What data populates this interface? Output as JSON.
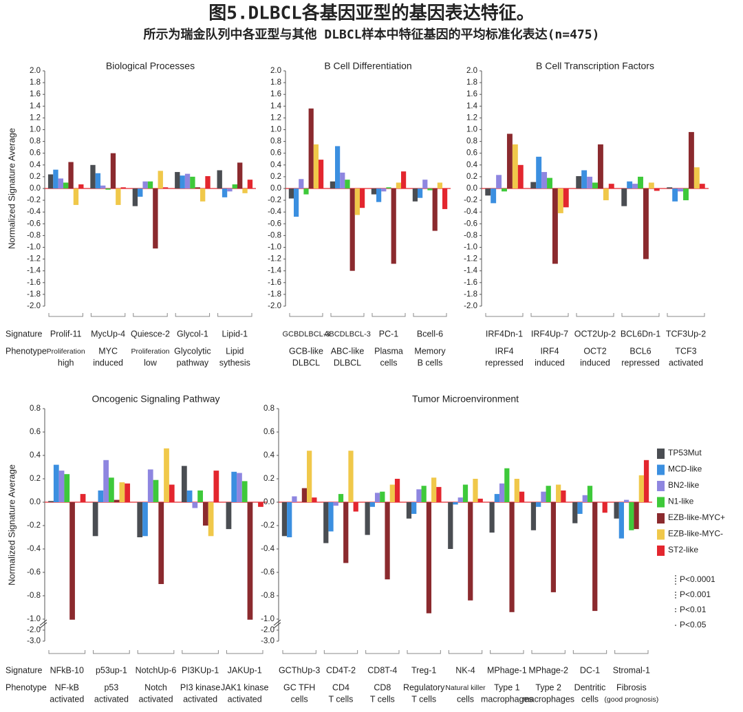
{
  "header": {
    "title": "图5.DLBCL各基因亚型的基因表达特征。",
    "subtitle": "所示为瑞金队列中各亚型与其他 DLBCL样本中特征基因的平均标准化表达(n=475)"
  },
  "row_labels": [
    "Signature",
    "Phenotype"
  ],
  "significance_legend": [
    "P<0.0001",
    "P<0.001",
    "P<0.01",
    "P<0.05"
  ],
  "chart_data": [
    {
      "type": "bar",
      "title": "Biological Processes",
      "y_label": "Normalized Signature Average",
      "categories": [
        "Prolif-11",
        "MycUp-4",
        "Quiesce-2",
        "Glycol-1",
        "Lipid-1"
      ],
      "phenotypes": [
        [
          "Proliferation",
          "high"
        ],
        [
          "MYC",
          "induced"
        ],
        [
          "Proliferation",
          "low"
        ],
        [
          "Glycolytic",
          "pathway"
        ],
        [
          "Lipid",
          "sythesis"
        ]
      ],
      "series": [
        {
          "name": "TP53Mut",
          "color": "#4a4d52",
          "values": [
            0.24,
            0.4,
            -0.3,
            0.28,
            0.31
          ]
        },
        {
          "name": "MCD-like",
          "color": "#3b8fe0",
          "values": [
            0.32,
            0.26,
            -0.14,
            0.22,
            -0.15
          ]
        },
        {
          "name": "BN2-like",
          "color": "#8e86e0",
          "values": [
            0.17,
            0.05,
            0.12,
            0.25,
            -0.05
          ]
        },
        {
          "name": "N1-like",
          "color": "#3ec93a",
          "values": [
            0.1,
            -0.02,
            0.12,
            0.2,
            0.07
          ]
        },
        {
          "name": "EZB-like-MYC+",
          "color": "#8b2a2e",
          "values": [
            0.45,
            0.6,
            -1.02,
            0.02,
            0.44
          ]
        },
        {
          "name": "EZB-like-MYC-",
          "color": "#f0c84a",
          "values": [
            -0.28,
            -0.28,
            0.3,
            -0.22,
            -0.08
          ]
        },
        {
          "name": "ST2-like",
          "color": "#e3262e",
          "values": [
            0.07,
            0.02,
            0.02,
            0.21,
            0.15
          ]
        }
      ],
      "ylim": [
        -2,
        2
      ],
      "yticks": [
        {
          "value": 2,
          "label": "2.0"
        },
        1.8,
        1.6,
        1.4,
        1.2,
        {
          "value": 1,
          "label": "1.0"
        },
        0.8,
        0.6,
        0.4,
        0.2,
        {
          "value": 0,
          "label": "0.0"
        },
        -0.2,
        -0.4,
        -0.6,
        -0.8,
        {
          "value": -1,
          "label": "-1.0"
        },
        -1.2,
        -1.4,
        -1.6,
        -1.8,
        {
          "value": -2,
          "label": "-2.0"
        }
      ]
    },
    {
      "type": "bar",
      "title": "B Cell Differentiation",
      "categories": [
        "GCBDLBCL-3",
        "ABCDLBCL-3",
        "PC-1",
        "Bcell-6"
      ],
      "phenotypes": [
        [
          "GCB-like",
          "DLBCL"
        ],
        [
          "ABC-like",
          "DLBCL"
        ],
        [
          "Plasma",
          "cells"
        ],
        [
          "Memory",
          "B cells"
        ]
      ],
      "series": [
        {
          "name": "TP53Mut",
          "color": "#4a4d52",
          "values": [
            -0.17,
            0.12,
            -0.1,
            -0.22
          ]
        },
        {
          "name": "MCD-like",
          "color": "#3b8fe0",
          "values": [
            -0.48,
            0.72,
            -0.23,
            -0.16
          ]
        },
        {
          "name": "BN2-like",
          "color": "#8e86e0",
          "values": [
            0.16,
            0.27,
            -0.05,
            0.15
          ]
        },
        {
          "name": "N1-like",
          "color": "#3ec93a",
          "values": [
            -0.1,
            0.15,
            0.02,
            -0.03
          ]
        },
        {
          "name": "EZB-like-MYC+",
          "color": "#8b2a2e",
          "values": [
            1.36,
            -1.4,
            -1.28,
            -0.72
          ]
        },
        {
          "name": "EZB-like-MYC-",
          "color": "#f0c84a",
          "values": [
            0.75,
            -0.45,
            0.1,
            0.1
          ]
        },
        {
          "name": "ST2-like",
          "color": "#e3262e",
          "values": [
            0.49,
            -0.33,
            0.29,
            -0.35
          ]
        }
      ],
      "ylim": [
        -2,
        2
      ],
      "yticks": [
        {
          "value": 2,
          "label": "2.0"
        },
        1.8,
        1.6,
        1.4,
        1.2,
        {
          "value": 1,
          "label": "1.0"
        },
        0.8,
        0.6,
        0.4,
        0.2,
        {
          "value": 0,
          "label": "0.0"
        },
        -0.2,
        -0.4,
        -0.6,
        -0.8,
        {
          "value": -1,
          "label": "-1.0"
        },
        -1.2,
        -1.4,
        -1.6,
        -1.8,
        {
          "value": -2,
          "label": "-2.0"
        }
      ]
    },
    {
      "type": "bar",
      "title": "B Cell Transcription Factors",
      "categories": [
        "IRF4Dn-1",
        "IRF4Up-7",
        "OCT2Up-2",
        "BCL6Dn-1",
        "TCF3Up-2"
      ],
      "phenotypes": [
        [
          "IRF4",
          "repressed"
        ],
        [
          "IRF4",
          "induced"
        ],
        [
          "OCT2",
          "induced"
        ],
        [
          "BCL6",
          "repressed"
        ],
        [
          "TCF3",
          "activated"
        ]
      ],
      "series": [
        {
          "name": "TP53Mut",
          "color": "#4a4d52",
          "values": [
            -0.12,
            0.11,
            0.21,
            -0.3,
            0.02
          ]
        },
        {
          "name": "MCD-like",
          "color": "#3b8fe0",
          "values": [
            -0.25,
            0.54,
            0.31,
            0.12,
            -0.22
          ]
        },
        {
          "name": "BN2-like",
          "color": "#8e86e0",
          "values": [
            0.23,
            0.28,
            0.2,
            0.08,
            -0.05
          ]
        },
        {
          "name": "N1-like",
          "color": "#3ec93a",
          "values": [
            -0.05,
            0.18,
            0.1,
            0.2,
            -0.2
          ]
        },
        {
          "name": "EZB-like-MYC+",
          "color": "#8b2a2e",
          "values": [
            0.93,
            -1.28,
            0.75,
            -1.2,
            0.96
          ]
        },
        {
          "name": "EZB-like-MYC-",
          "color": "#f0c84a",
          "values": [
            0.75,
            -0.42,
            -0.2,
            0.1,
            0.36
          ]
        },
        {
          "name": "ST2-like",
          "color": "#e3262e",
          "values": [
            0.4,
            -0.32,
            0.08,
            -0.04,
            0.08
          ]
        }
      ],
      "ylim": [
        -2,
        2
      ],
      "yticks": [
        {
          "value": 2,
          "label": "2.0"
        },
        1.8,
        1.6,
        1.4,
        1.2,
        {
          "value": 1,
          "label": "1.0"
        },
        0.8,
        0.6,
        0.4,
        0.2,
        {
          "value": 0,
          "label": "0.0"
        },
        -0.2,
        -0.4,
        -0.6,
        -0.8,
        {
          "value": -1,
          "label": "-1.0"
        },
        -1.2,
        -1.4,
        -1.6,
        -1.8,
        {
          "value": -2,
          "label": "-2.0"
        }
      ]
    },
    {
      "type": "bar",
      "title": "Oncogenic Signaling Pathway",
      "y_label": "Normalized Signature Average",
      "categories": [
        "NFkB-10",
        "p53up-1",
        "NotchUp-6",
        "PI3KUp-1",
        "JAKUp-1"
      ],
      "phenotypes": [
        [
          "NF-kB",
          "activated"
        ],
        [
          "p53",
          "activated"
        ],
        [
          "Notch",
          "activated"
        ],
        [
          "PI3 kinase",
          "activated"
        ],
        [
          "JAK1 kinase",
          "activated"
        ]
      ],
      "series": [
        {
          "name": "TP53Mut",
          "color": "#4a4d52",
          "values": [
            0.01,
            -0.29,
            -0.3,
            0.31,
            -0.23
          ]
        },
        {
          "name": "MCD-like",
          "color": "#3b8fe0",
          "values": [
            0.32,
            0.1,
            -0.29,
            0.1,
            0.26
          ]
        },
        {
          "name": "BN2-like",
          "color": "#8e86e0",
          "values": [
            0.27,
            0.36,
            0.28,
            -0.05,
            0.25
          ]
        },
        {
          "name": "N1-like",
          "color": "#3ec93a",
          "values": [
            0.24,
            0.21,
            0.19,
            0.1,
            0.18
          ]
        },
        {
          "name": "EZB-like-MYC+",
          "color": "#8b2a2e",
          "values": [
            -1.05,
            0.02,
            -0.7,
            -0.2,
            -1.05
          ]
        },
        {
          "name": "EZB-like-MYC-",
          "color": "#f0c84a",
          "values": [
            0.0,
            0.17,
            0.46,
            -0.29,
            0.0
          ]
        },
        {
          "name": "ST2-like",
          "color": "#e3262e",
          "values": [
            0.07,
            0.16,
            0.15,
            0.27,
            -0.04
          ]
        }
      ],
      "ylim": [
        -3,
        0.8
      ],
      "axis_break": -1,
      "yticks": [
        0.8,
        0.6,
        0.4,
        0.2,
        {
          "value": 0,
          "label": "0.0"
        },
        -0.2,
        -0.4,
        -0.6,
        -0.8,
        {
          "value": -1,
          "label": "-1.0"
        },
        {
          "value": -2,
          "label": "-2.0"
        },
        {
          "value": -3,
          "label": "-3.0"
        }
      ]
    },
    {
      "type": "bar",
      "title": "Tumor Microenvironment",
      "categories": [
        "GCThUp-3",
        "CD4T-2",
        "CD8T-4",
        "Treg-1",
        "NK-4",
        "MPhage-1",
        "MPhage-2",
        "DC-1",
        "Stromal-1"
      ],
      "phenotypes": [
        [
          "GC TFH",
          "cells"
        ],
        [
          "CD4",
          "T cells"
        ],
        [
          "CD8",
          "T cells"
        ],
        [
          "Regulatory",
          "T cells"
        ],
        [
          "Natural killer",
          "cells"
        ],
        [
          "Type 1",
          "macrophages"
        ],
        [
          "Type 2",
          "macrophages"
        ],
        [
          "Dentritic",
          "cells"
        ],
        [
          "Fibrosis",
          "(good prognosis)"
        ]
      ],
      "series": [
        {
          "name": "TP53Mut",
          "color": "#4a4d52",
          "values": [
            -0.29,
            -0.35,
            -0.28,
            -0.14,
            -0.4,
            -0.26,
            -0.24,
            -0.18,
            -0.14
          ]
        },
        {
          "name": "MCD-like",
          "color": "#3b8fe0",
          "values": [
            -0.3,
            -0.25,
            -0.04,
            -0.1,
            -0.02,
            0.07,
            -0.04,
            -0.1,
            -0.31
          ]
        },
        {
          "name": "BN2-like",
          "color": "#8e86e0",
          "values": [
            0.05,
            -0.03,
            0.08,
            0.11,
            0.04,
            0.16,
            0.09,
            0.06,
            0.02
          ]
        },
        {
          "name": "N1-like",
          "color": "#3ec93a",
          "values": [
            0.0,
            0.07,
            0.09,
            0.14,
            0.15,
            0.29,
            0.14,
            0.14,
            -0.24
          ]
        },
        {
          "name": "EZB-like-MYC+",
          "color": "#8b2a2e",
          "values": [
            0.12,
            -0.52,
            -0.66,
            -0.95,
            -0.84,
            -0.94,
            -0.77,
            -0.93,
            -0.23
          ]
        },
        {
          "name": "EZB-like-MYC-",
          "color": "#f0c84a",
          "values": [
            0.44,
            0.44,
            0.15,
            0.21,
            0.2,
            0.2,
            0.15,
            0.0,
            0.23
          ]
        },
        {
          "name": "ST2-like",
          "color": "#e3262e",
          "values": [
            0.04,
            -0.08,
            0.2,
            0.13,
            0.03,
            0.09,
            0.1,
            -0.09,
            0.36
          ]
        }
      ],
      "ylim": [
        -3,
        0.8
      ],
      "axis_break": -1,
      "yticks": [
        0.8,
        0.6,
        0.4,
        0.2,
        {
          "value": 0,
          "label": "0.0"
        },
        -0.2,
        -0.4,
        -0.6,
        -0.8,
        {
          "value": -1,
          "label": "-1.0"
        },
        {
          "value": -2,
          "label": "-2.0"
        },
        {
          "value": -3,
          "label": "-3.0"
        }
      ]
    }
  ]
}
